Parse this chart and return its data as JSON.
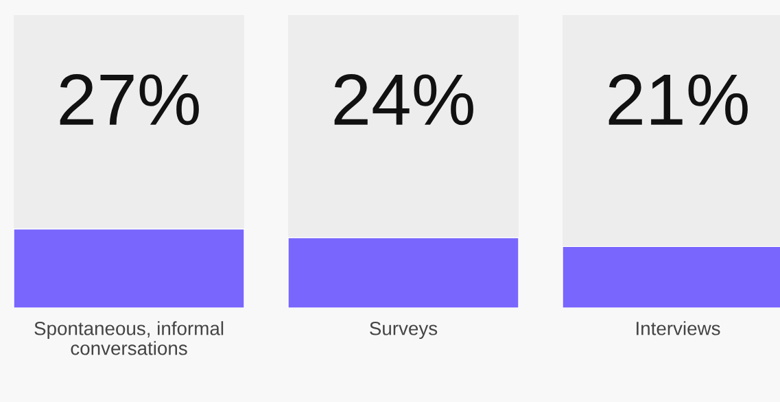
{
  "chart_data": {
    "type": "bar",
    "categories": [
      "Spontaneous, informal conversations",
      "Surveys",
      "Interviews"
    ],
    "values": [
      27,
      24,
      21
    ],
    "value_labels": [
      "27%",
      "24%",
      "21%"
    ],
    "color": "#7866fd",
    "ylim": [
      0,
      100
    ],
    "tick_labels": "x"
  }
}
